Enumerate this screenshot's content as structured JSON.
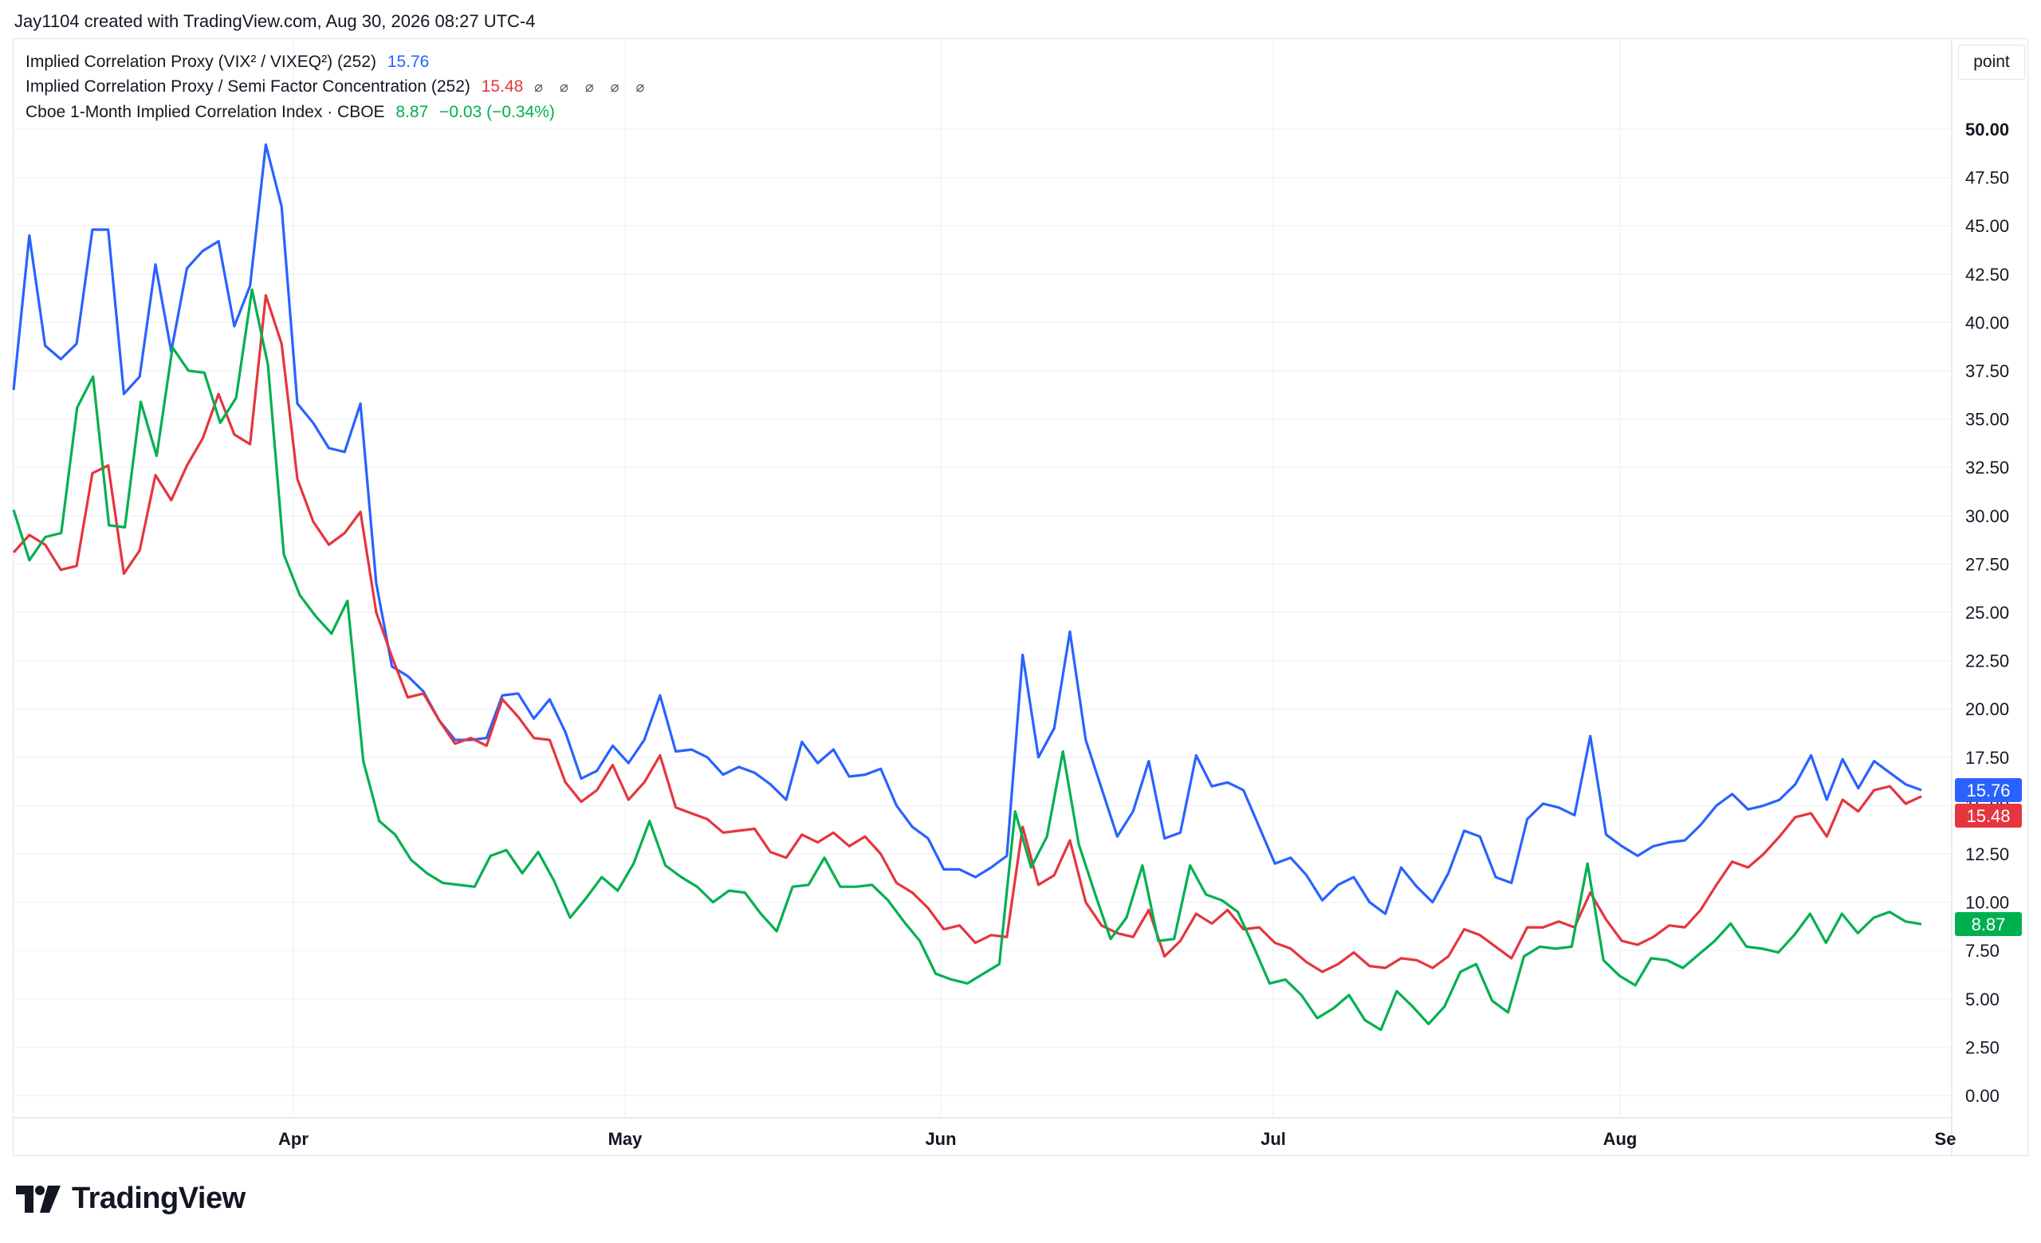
{
  "attribution": "Jay1104 created with TradingView.com, Aug 30, 2026 08:27 UTC-4",
  "unit_label": "point",
  "brand": "TradingView",
  "legend": [
    {
      "name": "Implied Correlation Proxy (VIX² / VIXEQ²) (252)",
      "value": "15.76",
      "extra": "",
      "color": "#2962ff"
    },
    {
      "name": "Implied Correlation Proxy / Semi Factor Concentration (252)",
      "value": "15.48",
      "extra": "",
      "tools": "⌀ ⌀ ⌀ ⌀ ⌀",
      "color": "#e5353f"
    },
    {
      "name": "Cboe 1-Month Implied Correlation Index · CBOE",
      "value": "8.87",
      "extra": "−0.03 (−0.34%)",
      "color": "#00b050"
    }
  ],
  "chart_data": {
    "type": "line",
    "x_labels": [
      "Apr",
      "May",
      "Jun",
      "Jul",
      "Aug",
      "Se"
    ],
    "y_ticks": [
      "0.00",
      "2.50",
      "5.00",
      "7.50",
      "10.00",
      "12.50",
      "15.00",
      "17.50",
      "20.00",
      "22.50",
      "25.00",
      "27.50",
      "30.00",
      "32.50",
      "35.00",
      "37.50",
      "40.00",
      "42.50",
      "45.00",
      "47.50",
      "50.00"
    ],
    "ylim": [
      0,
      50
    ],
    "grid": true,
    "series": [
      {
        "name": "Implied Correlation Proxy (VIX² / VIXEQ²) (252)",
        "color": "#2962ff",
        "last_label": "15.76",
        "values": [
          36.5,
          44.5,
          38.8,
          38.1,
          38.9,
          44.8,
          44.8,
          36.3,
          37.2,
          43.0,
          38.5,
          42.8,
          43.7,
          44.2,
          39.8,
          41.9,
          49.2,
          46.0,
          35.8,
          34.8,
          33.5,
          33.3,
          35.8,
          26.5,
          22.2,
          21.7,
          20.9,
          19.4,
          18.4,
          18.4,
          18.5,
          20.7,
          20.8,
          19.5,
          20.5,
          18.8,
          16.4,
          16.8,
          18.1,
          17.2,
          18.4,
          20.7,
          17.8,
          17.9,
          17.5,
          16.6,
          17.0,
          16.7,
          16.1,
          15.3,
          18.3,
          17.2,
          17.9,
          16.5,
          16.6,
          16.9,
          15.0,
          13.9,
          13.3,
          11.7,
          11.7,
          11.3,
          11.8,
          12.4,
          22.8,
          17.5,
          19.0,
          24.0,
          18.4,
          15.9,
          13.4,
          14.7,
          17.3,
          13.3,
          13.6,
          17.6,
          16.0,
          16.2,
          15.8,
          13.9,
          12.0,
          12.3,
          11.4,
          10.1,
          10.9,
          11.3,
          10.0,
          9.4,
          11.8,
          10.8,
          10.0,
          11.5,
          13.7,
          13.4,
          11.3,
          11.0,
          14.3,
          15.1,
          14.9,
          14.5,
          18.6,
          13.5,
          12.9,
          12.4,
          12.9,
          13.1,
          13.2,
          14.0,
          15.0,
          15.6,
          14.8,
          15.0,
          15.3,
          16.1,
          17.6,
          15.3,
          17.4,
          15.9,
          17.3,
          16.7,
          16.1,
          15.8
        ]
      },
      {
        "name": "Implied Correlation Proxy / Semi Factor Concentration (252)",
        "color": "#e5353f",
        "last_label": "15.48",
        "values": [
          28.1,
          29.0,
          28.5,
          27.2,
          27.4,
          32.2,
          32.6,
          27.0,
          28.2,
          32.1,
          30.8,
          32.6,
          34.0,
          36.3,
          34.2,
          33.7,
          41.4,
          38.9,
          31.9,
          29.7,
          28.5,
          29.1,
          30.2,
          25.0,
          22.7,
          20.6,
          20.8,
          19.4,
          18.2,
          18.5,
          18.1,
          20.5,
          19.6,
          18.5,
          18.4,
          16.2,
          15.2,
          15.8,
          17.1,
          15.3,
          16.2,
          17.6,
          14.9,
          14.6,
          14.3,
          13.6,
          13.7,
          13.8,
          12.6,
          12.3,
          13.5,
          13.1,
          13.6,
          12.9,
          13.4,
          12.5,
          11.0,
          10.5,
          9.7,
          8.6,
          8.8,
          7.9,
          8.3,
          8.2,
          13.9,
          10.9,
          11.4,
          13.2,
          10.0,
          8.8,
          8.4,
          8.2,
          9.6,
          7.2,
          8.0,
          9.4,
          8.9,
          9.6,
          8.6,
          8.7,
          7.9,
          7.6,
          6.9,
          6.4,
          6.8,
          7.4,
          6.7,
          6.6,
          7.1,
          7.0,
          6.6,
          7.2,
          8.6,
          8.3,
          7.7,
          7.1,
          8.7,
          8.7,
          9.0,
          8.7,
          10.5,
          9.1,
          8.0,
          7.8,
          8.2,
          8.8,
          8.7,
          9.6,
          10.9,
          12.1,
          11.8,
          12.5,
          13.4,
          14.4,
          14.6,
          13.4,
          15.3,
          14.7,
          15.8,
          16.0,
          15.1,
          15.48
        ]
      },
      {
        "name": "Cboe 1-Month Implied Correlation Index · CBOE",
        "color": "#00b050",
        "last_label": "8.87",
        "values": [
          30.3,
          27.7,
          28.9,
          29.1,
          35.6,
          37.2,
          29.5,
          29.4,
          35.9,
          33.1,
          38.7,
          37.5,
          37.4,
          34.8,
          36.1,
          41.7,
          37.8,
          28.0,
          25.9,
          24.8,
          23.9,
          25.6,
          17.3,
          14.2,
          13.5,
          12.2,
          11.5,
          11.0,
          10.9,
          10.8,
          12.4,
          12.7,
          11.5,
          12.6,
          11.1,
          9.2,
          10.2,
          11.3,
          10.6,
          12.0,
          14.2,
          11.9,
          11.3,
          10.8,
          10.0,
          10.6,
          10.5,
          9.4,
          8.5,
          10.8,
          10.9,
          12.3,
          10.8,
          10.8,
          10.9,
          10.1,
          9.0,
          8.0,
          6.3,
          6.0,
          5.8,
          6.3,
          6.8,
          14.7,
          11.8,
          13.4,
          17.8,
          13.0,
          10.5,
          8.1,
          9.2,
          11.9,
          8.0,
          8.1,
          11.9,
          10.4,
          10.1,
          9.5,
          7.7,
          5.8,
          6.0,
          5.2,
          4.0,
          4.5,
          5.2,
          3.9,
          3.4,
          5.4,
          4.6,
          3.7,
          4.6,
          6.4,
          6.8,
          4.9,
          4.3,
          7.2,
          7.7,
          7.6,
          7.7,
          12.0,
          7.0,
          6.2,
          5.7,
          7.1,
          7.0,
          6.6,
          7.3,
          8.0,
          8.9,
          7.7,
          7.6,
          7.4,
          8.3,
          9.4,
          7.9,
          9.4,
          8.4,
          9.2,
          9.5,
          9.0,
          8.87
        ]
      }
    ]
  }
}
